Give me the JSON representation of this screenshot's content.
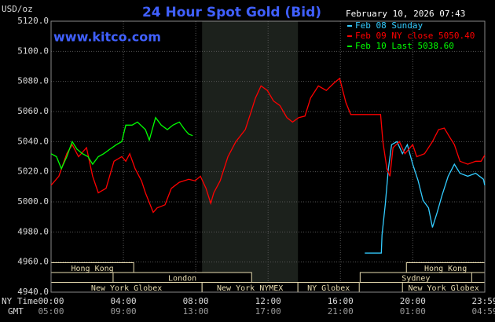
{
  "chart_data": {
    "type": "line",
    "title": "24 Hour Spot Gold (Bid)",
    "unit_label": "USD/oz",
    "website": "www.kitco.com",
    "timestamp": "February 10, 2026 07:43",
    "ylim": [
      4940,
      5120
    ],
    "yticks": [
      {
        "value": 4940,
        "label": "4940.0"
      },
      {
        "value": 4960,
        "label": "4960.0"
      },
      {
        "value": 4980,
        "label": "4980.0"
      },
      {
        "value": 5000,
        "label": "5000.0"
      },
      {
        "value": 5020,
        "label": "5020.0"
      },
      {
        "value": 5040,
        "label": "5040.0"
      },
      {
        "value": 5060,
        "label": "5060.0"
      },
      {
        "value": 5080,
        "label": "5080.0"
      },
      {
        "value": 5100,
        "label": "5100.0"
      },
      {
        "value": 5120,
        "label": "5120.0"
      }
    ],
    "xlim": [
      0,
      23.983
    ],
    "xticks": [
      {
        "value": 0,
        "label": "00:00"
      },
      {
        "value": 4,
        "label": "04:00"
      },
      {
        "value": 8,
        "label": "08:00"
      },
      {
        "value": 12,
        "label": "12:00"
      },
      {
        "value": 16,
        "label": "16:00"
      },
      {
        "value": 20,
        "label": "20:00"
      },
      {
        "value": 23.983,
        "label": "23:59"
      }
    ],
    "gmt_labels": [
      "05:00",
      "09:00",
      "13:00",
      "17:00",
      "21:00",
      "01:00",
      "04:59"
    ],
    "x_row_labels": [
      "NY Time",
      "GMT"
    ],
    "grid": true,
    "highlight": [
      8.35,
      13.65
    ],
    "session_rows": [
      [
        {
          "name": "Hong Kong",
          "start": 0,
          "end": 4.57
        },
        {
          "name": "Hong Kong",
          "start": 19.65,
          "end": 23.983
        }
      ],
      [
        {
          "name": "London",
          "start": 3.43,
          "end": 11.09
        },
        {
          "name": "Sydney",
          "start": 17.09,
          "end": 23.26
        }
      ],
      [
        {
          "name": "New York Globex",
          "start": 0,
          "end": 8.35
        },
        {
          "name": "New York NYMEX",
          "start": 8.35,
          "end": 13.65
        },
        {
          "name": "NY Globex",
          "start": 13.65,
          "end": 17.04
        },
        {
          "name": "New York Globex",
          "start": 19.43,
          "end": 23.983
        }
      ]
    ],
    "series": [
      {
        "name": "Feb 08 Sunday",
        "color": "#33ccff",
        "x": [
          17.35,
          18.26,
          18.3,
          18.48,
          18.65,
          18.83,
          19.13,
          19.43,
          19.7,
          20.0,
          20.3,
          20.57,
          20.87,
          21.09,
          21.35,
          21.61,
          21.96,
          22.3,
          22.61,
          23.04,
          23.48,
          23.91,
          23.98
        ],
        "values": [
          4966,
          4966,
          4978,
          4998,
          5022,
          5038,
          5040,
          5032,
          5038,
          5025,
          5014,
          5001,
          4996,
          4983,
          4993,
          5004,
          5017,
          5025,
          5019,
          5017,
          5019,
          5015,
          5011
        ]
      },
      {
        "name": "Feb 09 NY close 5050.40",
        "color": "#ff0000",
        "x": [
          0,
          0.43,
          0.87,
          1.17,
          1.52,
          1.96,
          2.3,
          2.61,
          3.04,
          3.48,
          3.91,
          4.13,
          4.35,
          4.65,
          5.0,
          5.22,
          5.65,
          5.87,
          6.3,
          6.65,
          7.09,
          7.61,
          7.96,
          8.26,
          8.57,
          8.83,
          9.0,
          9.35,
          9.78,
          10.22,
          10.74,
          11.09,
          11.3,
          11.61,
          11.96,
          12.3,
          12.65,
          13.04,
          13.35,
          13.7,
          14.04,
          14.35,
          14.78,
          15.22,
          15.65,
          15.96,
          16.3,
          16.57,
          17.0,
          17.61,
          18.22,
          18.35,
          18.57,
          18.74,
          18.91,
          19.26,
          19.57,
          20.0,
          20.22,
          20.65,
          21.09,
          21.43,
          21.74,
          22.04,
          22.3,
          22.61,
          23.04,
          23.48,
          23.78,
          23.98
        ],
        "values": [
          5011,
          5017,
          5032,
          5038,
          5030,
          5036,
          5017,
          5006,
          5009,
          5027,
          5030,
          5027,
          5032,
          5022,
          5014,
          5006,
          4993,
          4996,
          4998,
          5009,
          5013,
          5015,
          5014,
          5017,
          5009,
          4999,
          5006,
          5014,
          5030,
          5040,
          5048,
          5061,
          5069,
          5077,
          5074,
          5067,
          5064,
          5056,
          5053,
          5056,
          5057,
          5069,
          5077,
          5074,
          5079,
          5082,
          5066,
          5058,
          5058,
          5058,
          5058,
          5040,
          5022,
          5017,
          5036,
          5040,
          5032,
          5038,
          5030,
          5032,
          5040,
          5048,
          5049,
          5043,
          5038,
          5027,
          5025,
          5027,
          5027,
          5031
        ]
      },
      {
        "name": "Feb 10 Last 5038.60",
        "color": "#00ff00",
        "x": [
          0,
          0.3,
          0.57,
          0.87,
          1.17,
          1.43,
          1.74,
          2.04,
          2.3,
          2.61,
          2.91,
          3.26,
          3.61,
          3.91,
          4.13,
          4.48,
          4.78,
          5.22,
          5.43,
          5.78,
          6.09,
          6.43,
          6.74,
          7.09,
          7.39,
          7.61,
          7.83
        ],
        "values": [
          5032,
          5030,
          5022,
          5030,
          5040,
          5035,
          5032,
          5030,
          5025,
          5030,
          5032,
          5035,
          5038,
          5040,
          5051,
          5051,
          5053,
          5048,
          5041,
          5056,
          5051,
          5048,
          5051,
          5053,
          5048,
          5045,
          5044
        ]
      }
    ]
  }
}
